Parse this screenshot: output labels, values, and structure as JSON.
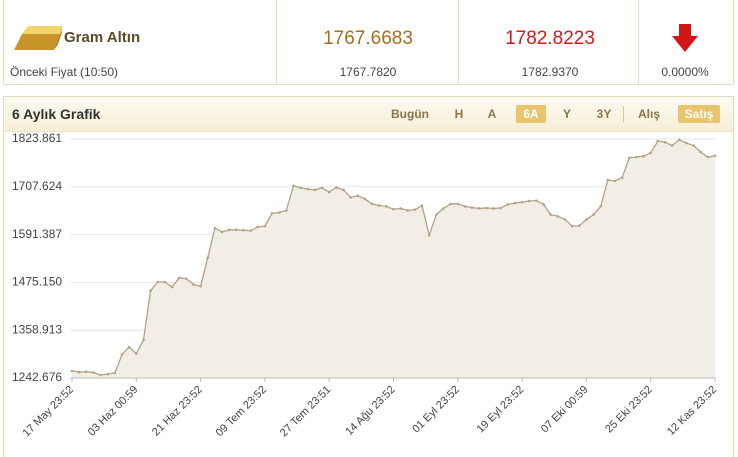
{
  "header": {
    "title": "Gram Altın",
    "buy": "1767.6683",
    "sell": "1782.8223",
    "prev_label": "Önceki Fiyat (10:50)",
    "prev_buy": "1767.7820",
    "prev_sell": "1782.9370",
    "change": "0.0000%"
  },
  "panel": {
    "title": "6 Aylık Grafik",
    "periods": [
      "Bugün",
      "H",
      "A",
      "6A",
      "Y",
      "3Y"
    ],
    "sides": [
      "Alış",
      "Satış"
    ]
  },
  "chart_data": {
    "type": "line",
    "color": "#b3a386",
    "area_color": "#f3eee5",
    "categories": [
      "17 May 23:52",
      null,
      null,
      null,
      null,
      null,
      null,
      null,
      null,
      "03 Haz 00:59",
      null,
      null,
      null,
      null,
      null,
      null,
      null,
      null,
      "21 Haz 23:52",
      null,
      null,
      null,
      null,
      null,
      null,
      null,
      null,
      "09 Tem 23:52",
      null,
      null,
      null,
      null,
      null,
      null,
      null,
      null,
      "27 Tem 23:51",
      null,
      null,
      null,
      null,
      null,
      null,
      null,
      null,
      "14 Ağu 23:52",
      null,
      null,
      null,
      null,
      null,
      null,
      null,
      null,
      "01 Eyl 23:52",
      null,
      null,
      null,
      null,
      null,
      null,
      null,
      null,
      "19 Eyl 23:52",
      null,
      null,
      null,
      null,
      null,
      null,
      null,
      null,
      "07 Eki 00:59",
      null,
      null,
      null,
      null,
      null,
      null,
      null,
      null,
      "25 Eki 23:52",
      null,
      null,
      null,
      null,
      null,
      null,
      null,
      null,
      "12 Kas 23:52"
    ],
    "values": [
      1260,
      1257,
      1258,
      1256,
      1250,
      1252,
      1255,
      1300,
      1318,
      1302,
      1335,
      1455,
      1476,
      1476,
      1464,
      1486,
      1484,
      1470,
      1466,
      1535,
      1607,
      1598,
      1603,
      1603,
      1602,
      1601,
      1610,
      1612,
      1643,
      1645,
      1650,
      1710,
      1705,
      1702,
      1700,
      1705,
      1695,
      1706,
      1700,
      1682,
      1686,
      1678,
      1666,
      1662,
      1660,
      1653,
      1655,
      1650,
      1652,
      1662,
      1590,
      1640,
      1655,
      1666,
      1666,
      1660,
      1657,
      1655,
      1656,
      1655,
      1656,
      1665,
      1668,
      1670,
      1673,
      1674,
      1665,
      1640,
      1636,
      1628,
      1612,
      1613,
      1628,
      1640,
      1660,
      1724,
      1722,
      1730,
      1778,
      1780,
      1782,
      1790,
      1819,
      1816,
      1808,
      1822,
      1814,
      1808,
      1792,
      1780,
      1783
    ],
    "ylim": [
      1242.676,
      1823.861
    ],
    "yticks": [
      {
        "value": 1242.676,
        "label": "1242.676"
      },
      {
        "value": 1358.913,
        "label": "1358.913"
      },
      {
        "value": 1475.15,
        "label": "1475.150"
      },
      {
        "value": 1591.387,
        "label": "1591.387"
      },
      {
        "value": 1707.624,
        "label": "1707.624"
      },
      {
        "value": 1823.861,
        "label": "1823.861"
      }
    ],
    "grid": true
  }
}
